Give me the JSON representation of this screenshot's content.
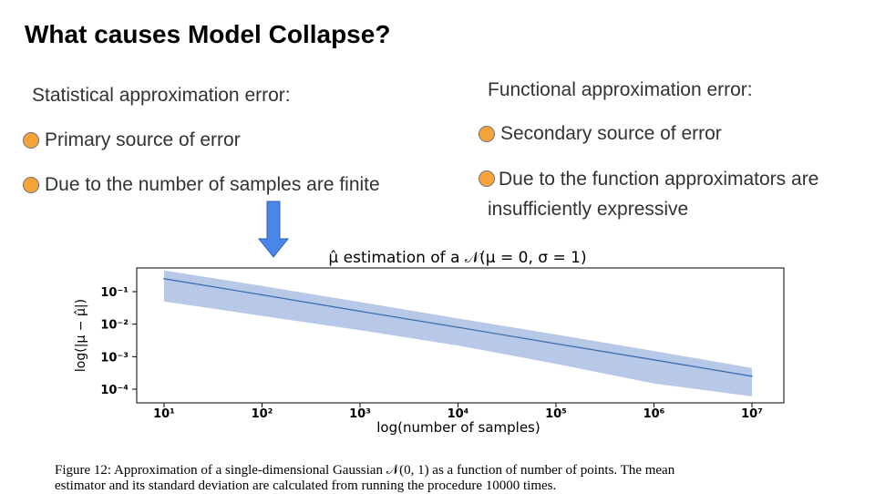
{
  "slide": {
    "title": "What causes Model Collapse?",
    "left": {
      "heading": "Statistical approximation error:",
      "bullets": [
        "Primary source of error",
        "Due to the number of samples are finite"
      ]
    },
    "right": {
      "heading": "Functional approximation error:",
      "bullets": [
        "Secondary source of error",
        "Due to the function approximators are",
        "insufficiently expressive"
      ]
    },
    "caption_line1": "Figure 12: Approximation of a single-dimensional Gaussian 𝒩(0, 1) as a function of number of points. The mean",
    "caption_line2": "estimator and its standard deviation are calculated from running the procedure 10000 times.",
    "colors": {
      "bullet": "#f5a33a",
      "arrow": "#4a86e8",
      "line": "#3a6fb0",
      "band": "#b4c6e7"
    },
    "icons": [
      "down-arrow-icon",
      "bullet-dot-icon"
    ]
  },
  "chart_data": {
    "type": "line",
    "title": "μ̂ estimation of a 𝒩(μ = 0, σ = 1)",
    "xlabel": "log(number of samples)",
    "ylabel": "log(|μ − μ̂|)",
    "x_scale": "log",
    "y_scale": "log",
    "xlim": [
      10,
      10000000
    ],
    "ylim": [
      5e-05,
      0.6
    ],
    "x_ticks": [
      10,
      100,
      1000,
      10000,
      100000,
      1000000,
      10000000
    ],
    "x_tick_labels": [
      "10¹",
      "10²",
      "10³",
      "10⁴",
      "10⁵",
      "10⁶",
      "10⁷"
    ],
    "y_ticks": [
      0.0001,
      0.001,
      0.01,
      0.1
    ],
    "y_tick_labels": [
      "10⁻⁴",
      "10⁻³",
      "10⁻²",
      "10⁻¹"
    ],
    "grid": false,
    "series": [
      {
        "x": [
          10,
          100,
          1000,
          10000,
          100000,
          1000000,
          10000000
        ],
        "values": [
          0.25,
          0.08,
          0.025,
          0.008,
          0.0025,
          0.0008,
          0.00025
        ],
        "band_upper": [
          0.45,
          0.15,
          0.048,
          0.015,
          0.0048,
          0.0015,
          0.00045
        ],
        "band_lower": [
          0.05,
          0.018,
          0.0065,
          0.0022,
          0.0006,
          0.00015,
          6e-05
        ]
      }
    ]
  }
}
